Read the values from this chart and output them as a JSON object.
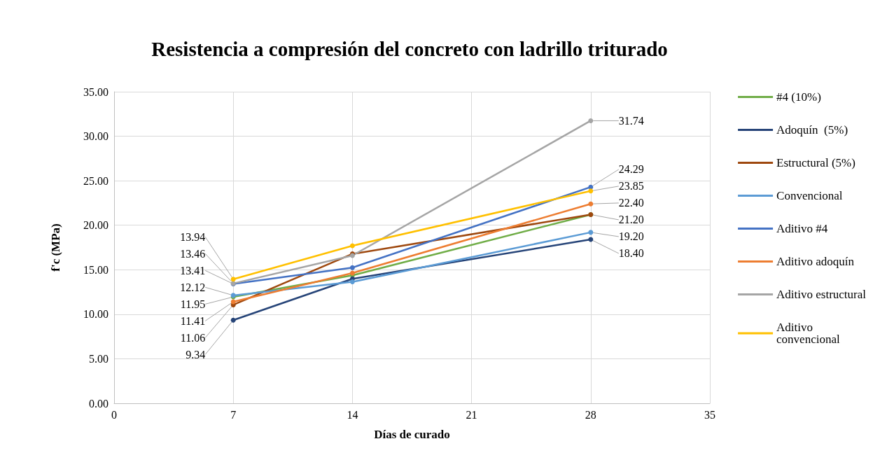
{
  "chart_data": {
    "type": "line",
    "title": "Resistencia a compresión del concreto con ladrillo triturado",
    "xlabel": "Días de curado",
    "ylabel": "f'c (MPa)",
    "x": [
      7,
      14,
      28
    ],
    "series": [
      {
        "name": "#4 (10%)",
        "color": "#70ad47",
        "values": [
          11.95,
          14.37,
          21.2
        ],
        "value_labels": [
          "11.95",
          null,
          null
        ]
      },
      {
        "name": "Adoquín  (5%)",
        "color": "#264478",
        "values": [
          9.34,
          13.98,
          18.4
        ],
        "value_labels": [
          "9.34",
          null,
          "18.40"
        ]
      },
      {
        "name": "Estructural (5%)",
        "color": "#9e480e",
        "values": [
          11.06,
          16.78,
          21.2
        ],
        "value_labels": [
          "11.06",
          null,
          "21.20"
        ]
      },
      {
        "name": "Convencional",
        "color": "#5b9bd5",
        "values": [
          12.12,
          13.64,
          19.2
        ],
        "value_labels": [
          "12.12",
          null,
          "19.20"
        ]
      },
      {
        "name": "Aditivo #4",
        "color": "#4472c4",
        "values": [
          13.41,
          15.24,
          24.29
        ],
        "value_labels": [
          "13.41",
          null,
          "24.29"
        ]
      },
      {
        "name": "Aditivo adoquín",
        "color": "#ed7d31",
        "values": [
          11.41,
          14.63,
          22.4
        ],
        "value_labels": [
          "11.41",
          null,
          "22.40"
        ]
      },
      {
        "name": "Aditivo estructural",
        "color": "#a5a5a5",
        "values": [
          13.46,
          16.6,
          31.74
        ],
        "value_labels": [
          "13.46",
          null,
          "31.74"
        ]
      },
      {
        "name": "Aditivo convencional",
        "color": "#ffc000",
        "values": [
          13.94,
          17.7,
          23.85
        ],
        "value_labels": [
          "13.94",
          null,
          "23.85"
        ]
      }
    ],
    "xlim": [
      0,
      35
    ],
    "xticks": [
      0,
      7,
      14,
      21,
      28,
      35
    ],
    "ylim": [
      0,
      35
    ],
    "yticks": [
      {
        "value": 0,
        "label": "0.00"
      },
      {
        "value": 5,
        "label": "5.00"
      },
      {
        "value": 10,
        "label": "10.00"
      },
      {
        "value": 15,
        "label": "15.00"
      },
      {
        "value": 20,
        "label": "20.00"
      },
      {
        "value": 25,
        "label": "25.00"
      },
      {
        "value": 30,
        "label": "30.00"
      },
      {
        "value": 35,
        "label": "35.00"
      }
    ],
    "grid": true,
    "legend": "right",
    "marker": "circle",
    "line_style": "solid"
  }
}
